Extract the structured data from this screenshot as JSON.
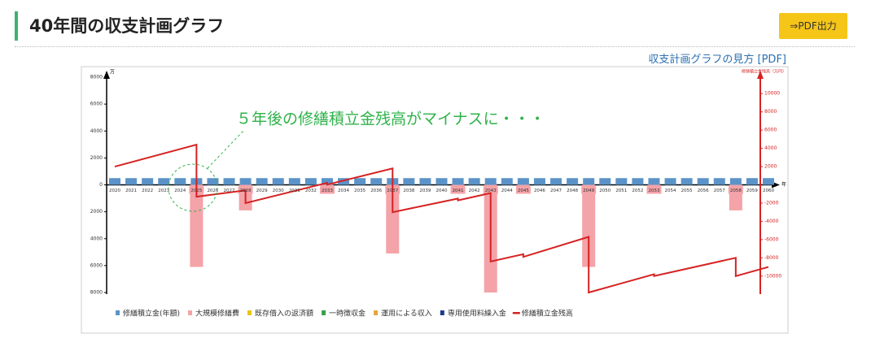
{
  "header": {
    "title": "40年間の収支計画グラフ",
    "button": "⇒PDF出力",
    "link": "収支計画グラフの見方 [PDF]"
  },
  "chart_data": {
    "type": "bar",
    "annotation": "５年後の修繕積立金残高がマイナスに・・・",
    "y_label": "万",
    "y2_label": "修繕積立金残高（万円）",
    "x_label": "年",
    "categories": [
      "2020",
      "2021",
      "2022",
      "2023",
      "2024",
      "2025",
      "2026",
      "2027",
      "2028",
      "2029",
      "2030",
      "2031",
      "2032",
      "2033",
      "2034",
      "2035",
      "2036",
      "2037",
      "2038",
      "2039",
      "2040",
      "2041",
      "2042",
      "2043",
      "2044",
      "2045",
      "2046",
      "2047",
      "2048",
      "2049",
      "2050",
      "2051",
      "2052",
      "2053",
      "2054",
      "2055",
      "2056",
      "2057",
      "2058",
      "2059",
      "2060"
    ],
    "ylim": [
      -8000,
      8000
    ],
    "yticks": [
      {
        "value": 8000,
        "label": "8000"
      },
      {
        "value": 6000,
        "label": "6000"
      },
      {
        "value": 4000,
        "label": "4000"
      },
      {
        "value": 2000,
        "label": "2000"
      },
      0,
      {
        "value": -2000,
        "label": "2000"
      },
      {
        "value": -4000,
        "label": "4000"
      },
      {
        "value": -6000,
        "label": "6000"
      },
      {
        "value": -8000,
        "label": "8000"
      }
    ],
    "y2lim": [
      -11800,
      11800
    ],
    "y2ticks": [
      10000,
      8000,
      6000,
      4000,
      2000,
      -2000,
      -4000,
      -6000,
      -8000,
      -10000
    ],
    "series": [
      {
        "name": "修繕積立金(年額)",
        "color": "#5b93c9",
        "values": [
          500,
          500,
          500,
          500,
          500,
          500,
          500,
          500,
          500,
          500,
          500,
          500,
          500,
          500,
          500,
          500,
          500,
          500,
          500,
          500,
          500,
          500,
          500,
          500,
          500,
          500,
          500,
          500,
          500,
          500,
          500,
          500,
          500,
          500,
          500,
          500,
          500,
          500,
          500,
          500,
          500
        ]
      },
      {
        "name": "大規模修繕費",
        "color": "#f4a3a8",
        "values": [
          0,
          0,
          0,
          0,
          0,
          -6100,
          0,
          0,
          -1900,
          0,
          0,
          0,
          0,
          -200,
          0,
          0,
          0,
          -5100,
          0,
          0,
          0,
          -200,
          0,
          -8000,
          0,
          -200,
          0,
          0,
          0,
          -6100,
          0,
          0,
          0,
          -200,
          0,
          0,
          0,
          0,
          -1900,
          0,
          0
        ]
      },
      {
        "name": "既存借入の返済額",
        "color": "#e6c619",
        "values": [
          0,
          0,
          0,
          0,
          0,
          0,
          0,
          0,
          0,
          0,
          0,
          0,
          0,
          0,
          0,
          0,
          0,
          0,
          0,
          0,
          0,
          0,
          0,
          0,
          0,
          0,
          0,
          0,
          0,
          0,
          0,
          0,
          0,
          0,
          0,
          0,
          0,
          0,
          0,
          0,
          0
        ]
      },
      {
        "name": "一時徴収金",
        "color": "#3aa04a",
        "values": [
          0,
          0,
          0,
          0,
          0,
          0,
          0,
          0,
          0,
          0,
          0,
          0,
          0,
          0,
          0,
          0,
          0,
          0,
          0,
          0,
          0,
          0,
          0,
          0,
          0,
          0,
          0,
          0,
          0,
          0,
          0,
          0,
          0,
          0,
          0,
          0,
          0,
          0,
          0,
          0,
          0
        ]
      },
      {
        "name": "運用による収入",
        "color": "#e8a33a",
        "values": [
          0,
          0,
          0,
          0,
          0,
          0,
          0,
          0,
          0,
          0,
          0,
          0,
          0,
          0,
          0,
          0,
          0,
          0,
          0,
          0,
          0,
          0,
          0,
          0,
          0,
          0,
          0,
          0,
          0,
          0,
          0,
          0,
          0,
          0,
          0,
          0,
          0,
          0,
          0,
          0,
          0
        ]
      },
      {
        "name": "専用使用料繰入金",
        "color": "#1f3a8a",
        "values": [
          0,
          0,
          0,
          0,
          0,
          0,
          0,
          0,
          0,
          0,
          0,
          0,
          0,
          0,
          0,
          0,
          0,
          0,
          0,
          0,
          0,
          0,
          0,
          0,
          0,
          0,
          0,
          0,
          0,
          0,
          0,
          0,
          0,
          0,
          0,
          0,
          0,
          0,
          0,
          0,
          0
        ]
      },
      {
        "name": "修繕積立金残高",
        "color": "#d62222",
        "type": "line",
        "axis": "y2",
        "x": [
          2020,
          2025,
          2025,
          2028,
          2028,
          2033,
          2033,
          2037,
          2037,
          2041,
          2041,
          2043,
          2043,
          2045,
          2045,
          2049,
          2049,
          2053,
          2053,
          2058,
          2058,
          2060
        ],
        "values": [
          2000,
          4400,
          -1300,
          -600,
          -2000,
          220,
          20,
          1800,
          -3000,
          -1500,
          -1700,
          -900,
          -8400,
          -7600,
          -7900,
          -5700,
          -11800,
          -9800,
          -10000,
          -8000,
          -10000,
          -9000
        ]
      }
    ]
  }
}
